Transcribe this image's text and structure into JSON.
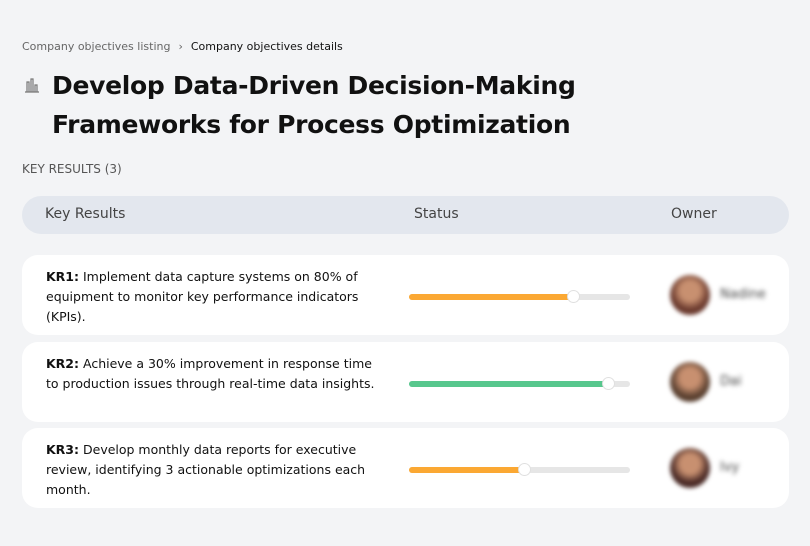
{
  "breadcrumb": {
    "parent": "Company objectives listing",
    "separator": "›",
    "current": "Company objectives details"
  },
  "title": "Develop Data-Driven Decision-Making Frameworks for Process Optimization",
  "title_icon": "bar-chart-icon",
  "key_results_label": "KEY RESULTS (3)",
  "table": {
    "headers": {
      "key_results": "Key Results",
      "status": "Status",
      "owner": "Owner"
    }
  },
  "rows": [
    {
      "id": "KR1:",
      "text": "Implement data capture systems on 80% of equipment to monitor key performance indicators (KPIs).",
      "progress": 0.74,
      "color": "#fba833",
      "owner": "Nadine",
      "avatar": "#6b3a2e"
    },
    {
      "id": "KR2:",
      "text": "Achieve a 30% improvement in response time to production issues through real-time data insights.",
      "progress": 0.9,
      "color": "#57c78d",
      "owner": "Dai",
      "avatar": "#5a4030"
    },
    {
      "id": "KR3:",
      "text": "Develop monthly data reports for executive review, identifying 3 actionable optimizations each month.",
      "progress": 0.52,
      "color": "#fba833",
      "owner": "Ivy",
      "avatar": "#4a2a26"
    }
  ]
}
